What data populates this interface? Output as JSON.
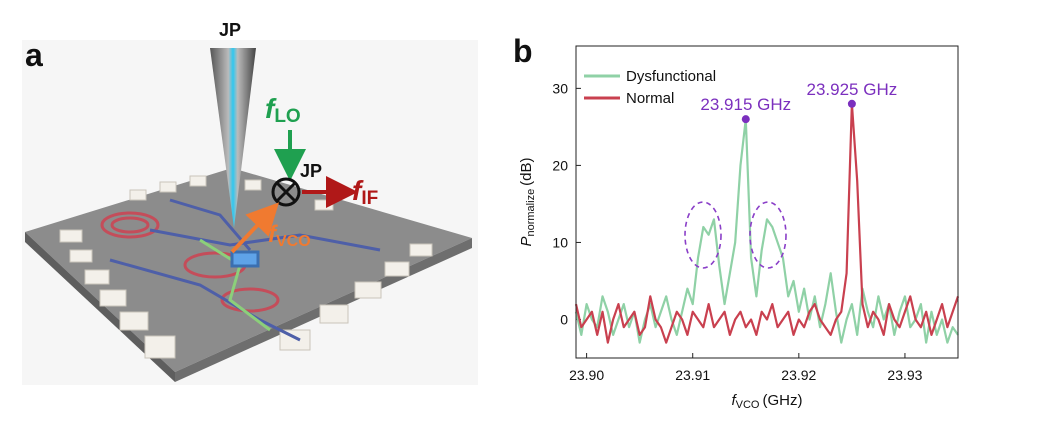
{
  "panel_labels": [
    "a",
    "b"
  ],
  "illustration": {
    "probe_label": "JP",
    "lo_label": {
      "symbol": "f",
      "subscript": "LO"
    },
    "mixer_label": "JP",
    "if_label": {
      "symbol": "f",
      "subscript": "IF"
    },
    "vco_label": {
      "symbol": "f",
      "subscript": "VCO"
    }
  },
  "chart_data": {
    "type": "line",
    "x_label": {
      "symbol": "f",
      "subscript": "VCO",
      "unit": "(GHz)"
    },
    "y_label": {
      "symbol": "P",
      "subscript": "normalize",
      "unit": "(dB)"
    },
    "x": [
      23.899,
      23.8995,
      23.9,
      23.9005,
      23.901,
      23.9015,
      23.902,
      23.9025,
      23.903,
      23.9035,
      23.904,
      23.9045,
      23.905,
      23.9055,
      23.906,
      23.9065,
      23.907,
      23.9075,
      23.908,
      23.9085,
      23.909,
      23.9095,
      23.91,
      23.9105,
      23.911,
      23.9115,
      23.912,
      23.9125,
      23.913,
      23.9135,
      23.914,
      23.9145,
      23.915,
      23.9155,
      23.916,
      23.9165,
      23.917,
      23.9175,
      23.918,
      23.9185,
      23.919,
      23.9195,
      23.92,
      23.9205,
      23.921,
      23.9215,
      23.922,
      23.9225,
      23.923,
      23.9235,
      23.924,
      23.9245,
      23.925,
      23.9255,
      23.926,
      23.9265,
      23.927,
      23.9275,
      23.928,
      23.9285,
      23.929,
      23.9295,
      23.93,
      23.9305,
      23.931,
      23.9315,
      23.932,
      23.9325,
      23.933,
      23.9335,
      23.934,
      23.9345,
      23.935
    ],
    "series": [
      {
        "name": "Dysfunctional",
        "color": "#8fd1a6",
        "values": [
          1,
          -2,
          2,
          0,
          -1,
          3,
          1,
          -2,
          0,
          2,
          -1,
          1,
          -3,
          0,
          2,
          -1,
          1,
          3,
          0,
          -2,
          1,
          4,
          2,
          8,
          12,
          11,
          13,
          7,
          2,
          6,
          10,
          20,
          26,
          8,
          3,
          9,
          13,
          12,
          10,
          8,
          3,
          5,
          1,
          4,
          0,
          3,
          -1,
          2,
          6,
          1,
          -3,
          0,
          2,
          -2,
          4,
          1,
          -1,
          3,
          0,
          2,
          -2,
          1,
          3,
          -1,
          0,
          2,
          -3,
          1,
          -2,
          0,
          -3,
          -1,
          -2
        ]
      },
      {
        "name": "Normal",
        "color": "#c9404f",
        "values": [
          2,
          -1,
          0,
          1,
          -2,
          1,
          -3,
          0,
          2,
          -1,
          0,
          1,
          -2,
          -1,
          3,
          0,
          -1,
          -3,
          -1,
          1,
          0,
          -2,
          1,
          0,
          -1,
          2,
          -1,
          0,
          1,
          -2,
          0,
          1,
          -1,
          0,
          -2,
          1,
          0,
          2,
          -1,
          0,
          1,
          -2,
          0,
          -1,
          1,
          2,
          0,
          -1,
          -2,
          0,
          1,
          6,
          28,
          18,
          2,
          -1,
          1,
          0,
          -2,
          2,
          0,
          -1,
          1,
          3,
          0,
          -1,
          1,
          -2,
          0,
          2,
          -1,
          1,
          3
        ]
      }
    ],
    "xlim": [
      23.899,
      23.935
    ],
    "xticks": [
      {
        "value": 23.9,
        "label": "23.90"
      },
      {
        "value": 23.91,
        "label": "23.91"
      },
      {
        "value": 23.92,
        "label": "23.92"
      },
      {
        "value": 23.93,
        "label": "23.93"
      }
    ],
    "ylim": [
      -5,
      35.5
    ],
    "yticks": [
      0,
      10,
      20,
      30
    ],
    "legend": "upper-left",
    "annotations": [
      {
        "text": "23.915 GHz",
        "x": 23.915,
        "y": 26,
        "color": "#7b2fbe"
      },
      {
        "text": "23.925 GHz",
        "x": 23.925,
        "y": 28,
        "color": "#7b2fbe"
      }
    ]
  }
}
